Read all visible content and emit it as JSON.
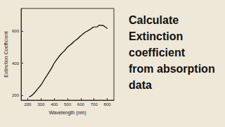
{
  "chart_data": {
    "type": "line",
    "title": "Calculate\nExtinction\ncoefficient\nfrom absorption\ndata",
    "x_label": "Wavelength (nm)",
    "y_label": "Extinction Coefficient",
    "x": [
      210,
      230,
      250,
      270,
      300,
      330,
      350,
      380,
      400,
      430,
      450,
      480,
      500,
      530,
      550,
      580,
      600,
      630,
      650,
      680,
      700,
      720,
      740,
      760,
      780,
      800
    ],
    "values": [
      190,
      200,
      215,
      235,
      265,
      305,
      330,
      370,
      400,
      435,
      455,
      480,
      500,
      520,
      535,
      555,
      570,
      590,
      600,
      615,
      625,
      625,
      635,
      635,
      628,
      615
    ],
    "color": "#000000",
    "xlim": [
      150,
      850
    ],
    "xticks": [
      200,
      300,
      400,
      500,
      600,
      700,
      800
    ],
    "ylim": [
      170,
      740
    ],
    "yticks": [
      200,
      400,
      600
    ],
    "grid": false
  }
}
